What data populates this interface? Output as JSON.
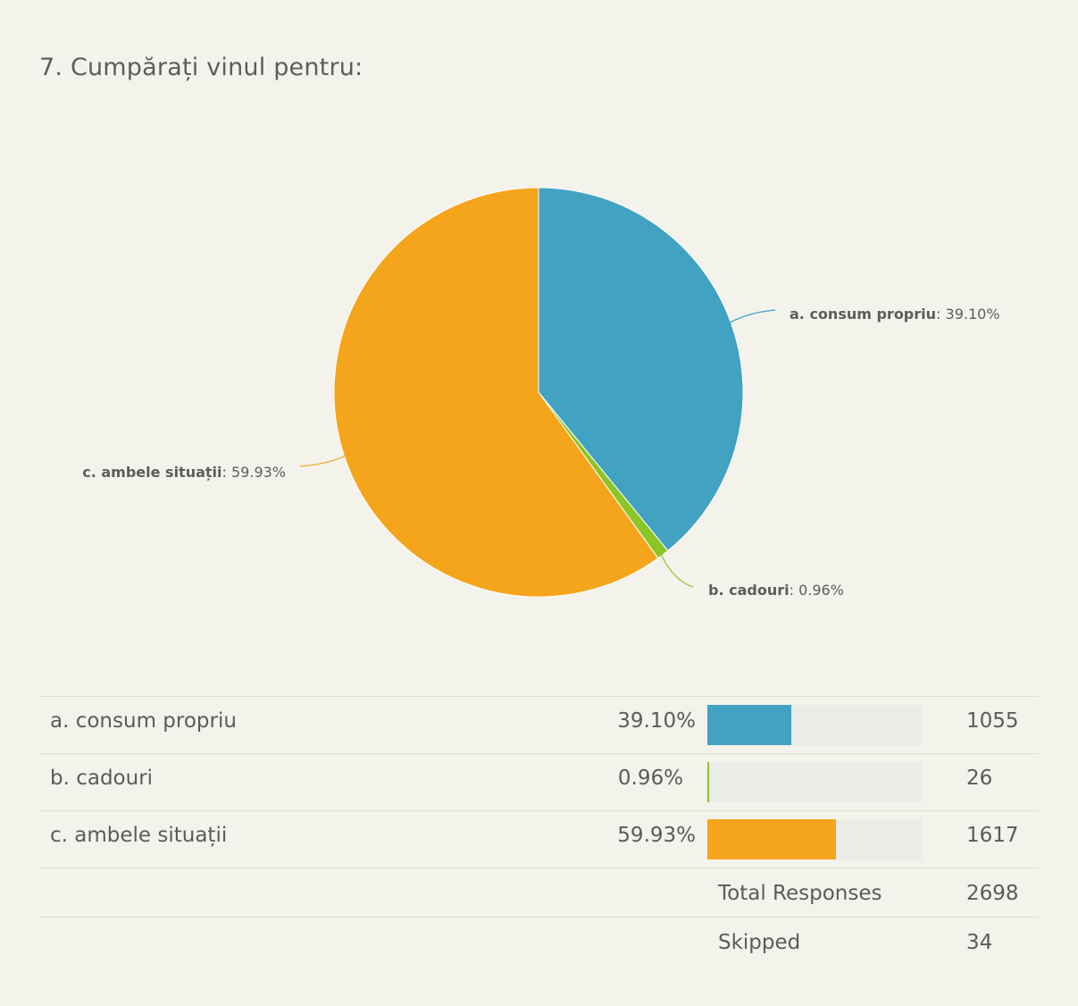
{
  "title": "7. Cumpărați vinul pentru:",
  "chart_data": {
    "type": "pie",
    "slices": [
      {
        "label": "a. consum propriu",
        "value": 39.1,
        "pct_text": "39.10%",
        "count": "1055",
        "color": "#41a2c2"
      },
      {
        "label": "b. cadouri",
        "value": 0.96,
        "pct_text": "0.96%",
        "count": "26",
        "color": "#8dc428"
      },
      {
        "label": "c. ambele situații",
        "value": 59.93,
        "pct_text": "59.93%",
        "count": "1617",
        "color": "#f4a51b"
      }
    ]
  },
  "summary": {
    "total_label": "Total Responses",
    "total_value": "2698",
    "skipped_label": "Skipped",
    "skipped_value": "34"
  }
}
